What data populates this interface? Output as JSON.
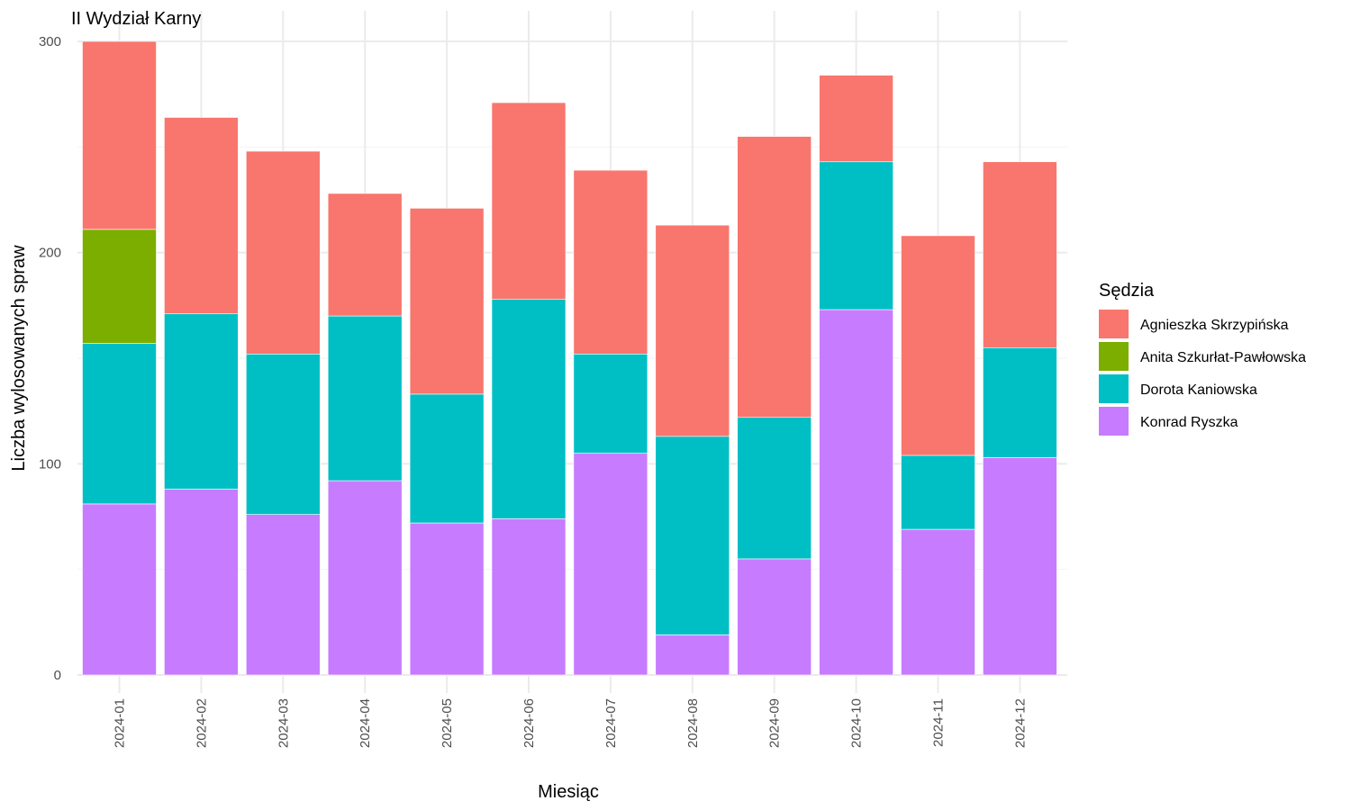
{
  "chart_data": {
    "type": "bar",
    "stacked": true,
    "title": "II Wydział Karny",
    "xlabel": "Miesiąc",
    "ylabel": "Liczba wylosowanych spraw",
    "ylim": [
      0,
      300
    ],
    "yticks": [
      0,
      100,
      200,
      300
    ],
    "grid": true,
    "legend_title": "Sędzia",
    "legend_position": "right",
    "categories": [
      "2024-01",
      "2024-02",
      "2024-03",
      "2024-04",
      "2024-05",
      "2024-06",
      "2024-07",
      "2024-08",
      "2024-09",
      "2024-10",
      "2024-11",
      "2024-12"
    ],
    "stack_order": [
      "Konrad Ryszka",
      "Dorota Kaniowska",
      "Anita Szkurłat-Pawłowska",
      "Agnieszka Skrzypińska"
    ],
    "series": [
      {
        "name": "Agnieszka Skrzypińska",
        "color": "#F8766D",
        "values": [
          89,
          93,
          96,
          58,
          88,
          93,
          87,
          100,
          133,
          41,
          104,
          88
        ]
      },
      {
        "name": "Anita Szkurłat-Pawłowska",
        "color": "#7CAE00",
        "values": [
          54,
          0,
          0,
          0,
          0,
          0,
          0,
          0,
          0,
          0,
          0,
          0
        ]
      },
      {
        "name": "Dorota Kaniowska",
        "color": "#00BFC4",
        "values": [
          76,
          83,
          76,
          78,
          61,
          104,
          47,
          94,
          67,
          70,
          35,
          52
        ]
      },
      {
        "name": "Konrad Ryszka",
        "color": "#C77CFF",
        "values": [
          81,
          88,
          76,
          92,
          72,
          74,
          105,
          19,
          55,
          173,
          69,
          103
        ]
      }
    ]
  }
}
